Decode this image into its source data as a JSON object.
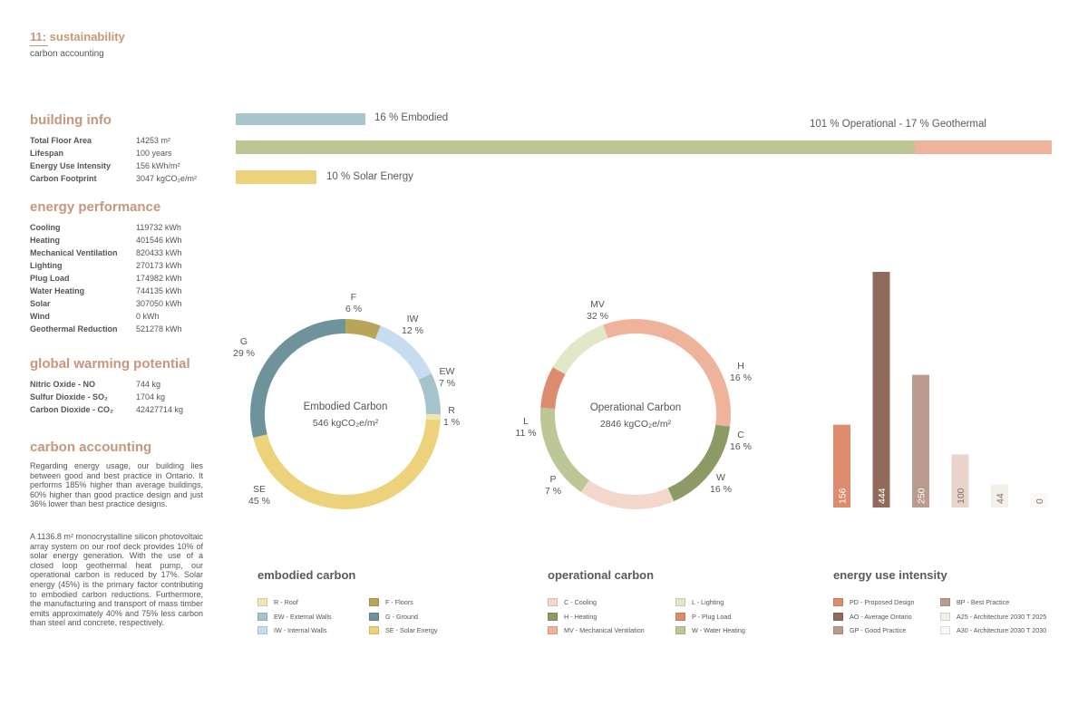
{
  "header": {
    "section": "11: sustainability",
    "subtitle": "carbon accounting"
  },
  "building_info": {
    "title": "building info",
    "rows": [
      {
        "label": "Total Floor Area",
        "value": "14253 m²"
      },
      {
        "label": "Lifespan",
        "value": "100 years"
      },
      {
        "label": "Energy Use Intensity",
        "value": "156 kWh/m²"
      },
      {
        "label": "Carbon Footprint",
        "value": "3047 kgCO₂e/m²"
      }
    ]
  },
  "energy_performance": {
    "title": "energy performance",
    "rows": [
      {
        "label": "Cooling",
        "value": "119732 kWh"
      },
      {
        "label": "Heating",
        "value": "401546 kWh"
      },
      {
        "label": "Mechanical Ventilation",
        "value": "820433 kWh"
      },
      {
        "label": "Lighting",
        "value": "270173 kWh"
      },
      {
        "label": "Plug Load",
        "value": "174982 kWh"
      },
      {
        "label": "Water Heating",
        "value": "744135 kWh"
      },
      {
        "label": "Solar",
        "value": "307050 kWh"
      },
      {
        "label": "Wind",
        "value": "0 kWh"
      },
      {
        "label": "Geothermal Reduction",
        "value": "521278 kWh"
      }
    ]
  },
  "global_warming": {
    "title": "global warming potential",
    "rows": [
      {
        "label": "Nitric Oxide - NO",
        "value": "744 kg"
      },
      {
        "label": "Sulfur Dioxide - SO₂",
        "value": "1704 kg"
      },
      {
        "label": "Carbon Dioxide - CO₂",
        "value": "42427714 kg"
      }
    ]
  },
  "carbon_accounting": {
    "title": "carbon accounting",
    "para1": "Regarding energy usage, our building lies between good and best practice in Ontario. It performs 185% higher than average buildings, 60% higher than good practice design and just 36% lower than best practice designs.",
    "para2": "A 1136.8 m² monocrystalline silicon photovoltaic array system on our roof deck provides 10% of solar energy generation. With the use of a closed loop geothermal heat pump, our operational carbon is reduced by 17%. Solar energy (45%) is the primary factor contributing to embodied carbon reductions. Furthermore, the manufacturing and transport of mass timber emits approximately 40% and 75% less carbon than steel and concrete, respectively."
  },
  "chart_data": [
    {
      "type": "bar",
      "orientation": "horizontal",
      "bars": [
        {
          "label": "16 % Embodied",
          "value": 16,
          "color": "#a9c6cc"
        },
        {
          "label": "101 % Operational - 17 % Geothermal",
          "value": 101,
          "segments": [
            {
              "name": "Operational",
              "value": 84,
              "color": "#bcc795"
            },
            {
              "name": "Geothermal",
              "value": 17,
              "color": "#efb39b"
            }
          ]
        },
        {
          "label": "10 % Solar Energy",
          "value": 10,
          "color": "#ecd27a"
        }
      ],
      "xlim": [
        0,
        101
      ]
    },
    {
      "type": "pie",
      "title": "Embodied Carbon",
      "value_label": "546 kgCO₂e/m²",
      "slices": [
        {
          "code": "F",
          "label": "F",
          "pct": "6 %",
          "value": 6,
          "color": "#b8a558"
        },
        {
          "code": "IW",
          "label": "IW",
          "pct": "12 %",
          "value": 12,
          "color": "#c7dcee"
        },
        {
          "code": "EW",
          "label": "EW",
          "pct": "7 %",
          "value": 7,
          "color": "#a4c3ca"
        },
        {
          "code": "R",
          "label": "R",
          "pct": "1 %",
          "value": 1,
          "color": "#efe6b6"
        },
        {
          "code": "SE",
          "label": "SE",
          "pct": "45 %",
          "value": 45,
          "color": "#ecd27a"
        },
        {
          "code": "G",
          "label": "G",
          "pct": "29 %",
          "value": 29,
          "color": "#6f939c"
        }
      ]
    },
    {
      "type": "pie",
      "title": "Operational Carbon",
      "value_label": "2846 kgCO₂e/m²",
      "slices": [
        {
          "code": "MV",
          "label": "MV",
          "pct": "32 %",
          "value": 32,
          "color": "#efb39b"
        },
        {
          "code": "H",
          "label": "H",
          "pct": "16 %",
          "value": 16,
          "color": "#8c9a65"
        },
        {
          "code": "C",
          "label": "C",
          "pct": "16 %",
          "value": 16,
          "color": "#f4d7cb"
        },
        {
          "code": "W",
          "label": "W",
          "pct": "16 %",
          "value": 16,
          "color": "#bcc795"
        },
        {
          "code": "P",
          "label": "P",
          "pct": "7 %",
          "value": 7,
          "color": "#dd8c6e"
        },
        {
          "code": "L",
          "label": "L",
          "pct": "11 %",
          "value": 11,
          "color": "#e1e8c8"
        }
      ]
    },
    {
      "type": "bar",
      "title": "energy use intensity",
      "categories": [
        "PD",
        "AO",
        "GP",
        "BP",
        "A25",
        "A30"
      ],
      "values": [
        156,
        444,
        250,
        100,
        44,
        0
      ],
      "colors": [
        "#dd8c6e",
        "#926a5c",
        "#b99b8f",
        "#e8d4cc",
        "#f4efe8",
        "#fbf9f6"
      ],
      "ylim": [
        0,
        444
      ]
    }
  ],
  "legends": {
    "embodied": {
      "title": "embodied carbon",
      "items": [
        {
          "label": "R - Roof",
          "color": "#efe6b6"
        },
        {
          "label": "F - Floors",
          "color": "#b8a558"
        },
        {
          "label": "EW - External Walls",
          "color": "#a4c3ca"
        },
        {
          "label": "G - Ground",
          "color": "#6f939c"
        },
        {
          "label": "IW - Internal Walls",
          "color": "#c7dcee"
        },
        {
          "label": "SE - Solar Energy",
          "color": "#ecd27a"
        }
      ]
    },
    "operational": {
      "title": "operational carbon",
      "items": [
        {
          "label": "C - Cooling",
          "color": "#f4d7cb"
        },
        {
          "label": "L - Lighting",
          "color": "#e1e8c8"
        },
        {
          "label": "H - Heating",
          "color": "#8c9a65"
        },
        {
          "label": "P - Plug Load",
          "color": "#dd8c6e"
        },
        {
          "label": "MV - Mechanical Ventilation",
          "color": "#efb39b"
        },
        {
          "label": "W - Water Heating",
          "color": "#bcc795"
        }
      ]
    },
    "eui": {
      "title": "energy use intensity",
      "items": [
        {
          "label": "PD - Proposed Design",
          "color": "#dd8c6e"
        },
        {
          "label": "BP - Best Practice",
          "color": "#b99b8f"
        },
        {
          "label": "AO - Average Ontario",
          "color": "#926a5c"
        },
        {
          "label": "A25 - Architecture 2030 T 2025",
          "color": "#f4efe8"
        },
        {
          "label": "GP - Good Practice",
          "color": "#b99b8f"
        },
        {
          "label": "A30 - Architecture 2030 T 2030",
          "color": "#fbf9f6"
        }
      ]
    }
  }
}
